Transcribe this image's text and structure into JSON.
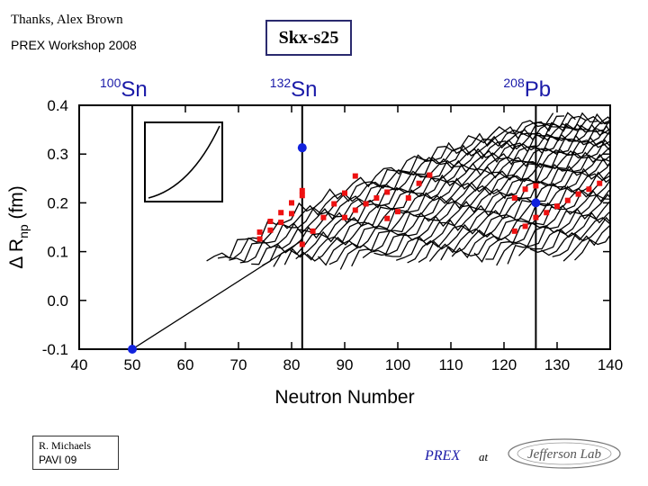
{
  "header": {
    "thanks": "Thanks,  Alex  Brown",
    "workshop": "PREX  Workshop 2008",
    "title": "Skx-s25"
  },
  "footer": {
    "author": "R.  Michaels",
    "venue": "PAVI  09",
    "prex": "PREX",
    "at": "at",
    "logo_text": "Jefferson Lab"
  },
  "chart_data": {
    "type": "line",
    "xlabel": "Neutron Number",
    "ylabel_prefix": "Δ R",
    "ylabel_sub": "np",
    "ylabel_suffix": " (fm)",
    "xlim": [
      40,
      140
    ],
    "ylim": [
      -0.1,
      0.4
    ],
    "xticks": [
      "40",
      "50",
      "60",
      "70",
      "80",
      "90",
      "100",
      "110",
      "120",
      "130",
      "140"
    ],
    "yticks": [
      "-0.1",
      "0.0",
      "0.1",
      "0.2",
      "0.3",
      "0.4"
    ],
    "magic_numbers": [
      {
        "n": 50,
        "mass": "100",
        "element": "Sn"
      },
      {
        "n": 82,
        "mass": "132",
        "element": "Sn"
      },
      {
        "n": 126,
        "mass": "208",
        "element": "Pb"
      }
    ],
    "series": [
      {
        "name": "Z=50 isotopes",
        "x": [
          50,
          82
        ],
        "y": [
          -0.1,
          0.123
        ]
      },
      {
        "name": "isotope chains",
        "count": 34,
        "slope_fm_per_neutron": 0.0067,
        "chain_length": 45
      },
      {
        "name": "blue reference points",
        "x": [
          50,
          82,
          126
        ],
        "y": [
          -0.1,
          0.313,
          0.2
        ]
      },
      {
        "name": "red data points",
        "x": [
          74,
          74,
          76,
          76,
          78,
          78,
          80,
          80,
          82,
          82,
          82,
          84,
          86,
          88,
          90,
          90,
          92,
          92,
          94,
          96,
          98,
          98,
          100,
          102,
          104,
          106,
          122,
          122,
          124,
          124,
          126,
          126,
          128,
          130,
          132,
          134,
          136,
          138
        ],
        "y": [
          0.126,
          0.14,
          0.144,
          0.162,
          0.16,
          0.18,
          0.178,
          0.2,
          0.215,
          0.225,
          0.115,
          0.142,
          0.17,
          0.198,
          0.17,
          0.22,
          0.185,
          0.255,
          0.198,
          0.21,
          0.168,
          0.222,
          0.182,
          0.21,
          0.24,
          0.257,
          0.142,
          0.21,
          0.152,
          0.228,
          0.17,
          0.235,
          0.18,
          0.193,
          0.205,
          0.218,
          0.228,
          0.24
        ]
      }
    ]
  }
}
